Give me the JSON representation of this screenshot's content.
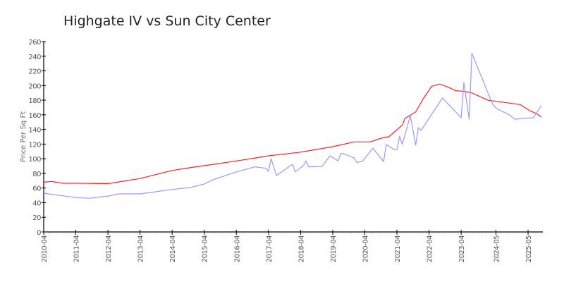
{
  "chart_data": {
    "type": "line",
    "title": "Highgate IV vs Sun City Center",
    "xlabel": "",
    "ylabel": "Price Per Sq Ft",
    "ylim": [
      0,
      260
    ],
    "yticks": [
      0,
      20,
      40,
      60,
      80,
      100,
      120,
      140,
      160,
      180,
      200,
      220,
      240,
      260
    ],
    "xrange": [
      "2010-04",
      "2025-10"
    ],
    "xticks": [
      "2010-04",
      "2011-04",
      "2012-04",
      "2013-04",
      "2014-04",
      "2015-04",
      "2016-04",
      "2017-04",
      "2018-04",
      "2019-04",
      "2020-04",
      "2021-04",
      "2022-04",
      "2023-04",
      "2024-05",
      "2025-05"
    ],
    "grid": false,
    "legend": "none",
    "series": [
      {
        "color": "#ff2020",
        "points": [
          [
            "2010-04",
            68
          ],
          [
            "2010-07",
            69
          ],
          [
            "2010-11",
            66.5
          ],
          [
            "2011-04",
            66.5
          ],
          [
            "2012-04",
            66
          ],
          [
            "2013-04",
            73
          ],
          [
            "2014-04",
            84
          ],
          [
            "2014-11",
            88
          ],
          [
            "2015-04",
            90.5
          ],
          [
            "2016-04",
            97
          ],
          [
            "2016-11",
            101
          ],
          [
            "2017-04",
            104
          ],
          [
            "2018-04",
            109
          ],
          [
            "2019-04",
            116.5
          ],
          [
            "2019-12",
            123
          ],
          [
            "2020-06",
            123
          ],
          [
            "2020-11",
            129
          ],
          [
            "2021-01",
            130
          ],
          [
            "2021-06",
            146
          ],
          [
            "2021-07",
            155
          ],
          [
            "2021-11",
            164
          ],
          [
            "2022-02",
            183
          ],
          [
            "2022-05",
            199
          ],
          [
            "2022-08",
            202
          ],
          [
            "2022-11",
            198
          ],
          [
            "2023-02",
            193
          ],
          [
            "2023-05",
            192
          ],
          [
            "2023-08",
            190
          ],
          [
            "2023-11",
            185
          ],
          [
            "2024-02",
            180
          ],
          [
            "2024-08",
            177
          ],
          [
            "2025-02",
            174
          ],
          [
            "2025-06",
            165
          ],
          [
            "2025-08",
            162
          ],
          [
            "2025-10",
            157
          ]
        ]
      },
      {
        "color": "#9999ff",
        "points": [
          [
            "2010-04",
            53
          ],
          [
            "2011-04",
            47
          ],
          [
            "2011-09",
            46
          ],
          [
            "2012-04",
            49
          ],
          [
            "2012-08",
            52
          ],
          [
            "2013-04",
            52
          ],
          [
            "2014-04",
            58
          ],
          [
            "2014-11",
            61
          ],
          [
            "2015-04",
            65.5
          ],
          [
            "2015-07",
            71
          ],
          [
            "2016-04",
            82
          ],
          [
            "2016-11",
            89
          ],
          [
            "2017-03",
            87
          ],
          [
            "2017-04",
            83
          ],
          [
            "2017-05",
            100
          ],
          [
            "2017-07",
            77
          ],
          [
            "2018-01",
            92.5
          ],
          [
            "2018-02",
            82
          ],
          [
            "2018-05",
            90.5
          ],
          [
            "2018-06",
            97
          ],
          [
            "2018-07",
            89
          ],
          [
            "2018-12",
            89.5
          ],
          [
            "2019-03",
            104
          ],
          [
            "2019-06",
            97
          ],
          [
            "2019-07",
            107
          ],
          [
            "2019-08",
            107
          ],
          [
            "2019-12",
            101
          ],
          [
            "2020-01",
            95
          ],
          [
            "2020-03",
            96
          ],
          [
            "2020-07",
            114.5
          ],
          [
            "2020-11",
            96
          ],
          [
            "2020-12",
            119.5
          ],
          [
            "2021-03",
            112.5
          ],
          [
            "2021-04",
            112.5
          ],
          [
            "2021-05",
            131
          ],
          [
            "2021-06",
            119.5
          ],
          [
            "2021-09",
            159
          ],
          [
            "2021-11",
            118.5
          ],
          [
            "2021-12",
            142.5
          ],
          [
            "2022-01",
            138.7
          ],
          [
            "2022-09",
            183
          ],
          [
            "2023-04",
            156
          ],
          [
            "2023-05",
            204
          ],
          [
            "2023-07",
            154
          ],
          [
            "2023-08",
            244
          ],
          [
            "2024-02",
            190
          ],
          [
            "2024-04",
            172.5
          ],
          [
            "2024-06",
            167
          ],
          [
            "2024-10",
            160
          ],
          [
            "2024-12",
            154
          ],
          [
            "2025-03",
            155
          ],
          [
            "2025-07",
            156
          ],
          [
            "2025-10",
            173
          ]
        ]
      }
    ]
  }
}
